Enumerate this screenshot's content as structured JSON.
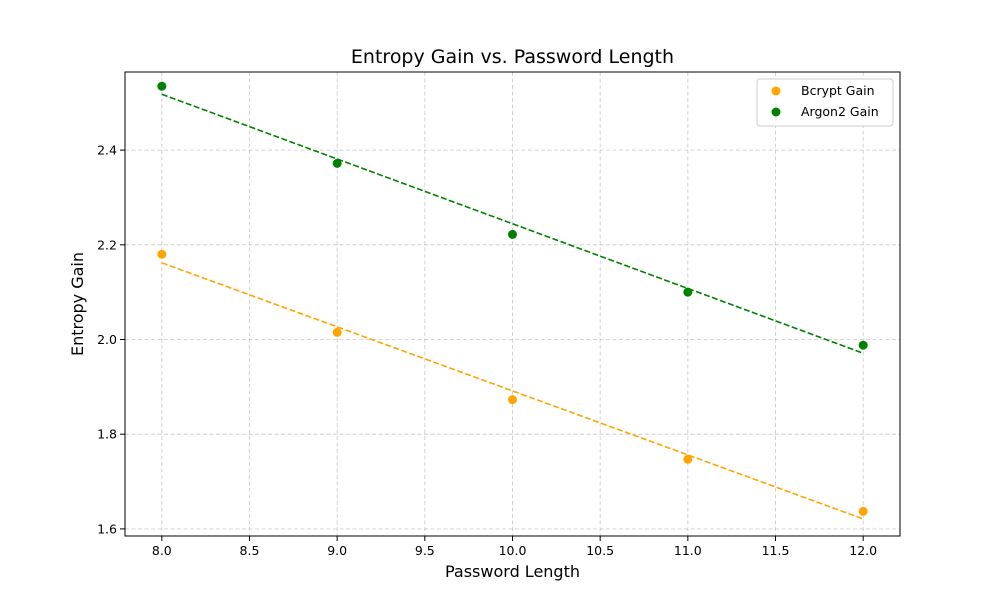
{
  "chart_data": {
    "type": "scatter",
    "title": "Entropy Gain vs. Password Length",
    "xlabel": "Password Length",
    "ylabel": "Entropy Gain",
    "xlim": [
      7.79,
      12.21
    ],
    "ylim": [
      1.585,
      2.565
    ],
    "x_ticks": [
      8.0,
      8.5,
      9.0,
      9.5,
      10.0,
      10.5,
      11.0,
      11.5,
      12.0
    ],
    "x_tick_labels": [
      "8.0",
      "8.5",
      "9.0",
      "9.5",
      "10.0",
      "10.5",
      "11.0",
      "11.5",
      "12.0"
    ],
    "y_ticks": [
      1.6,
      1.8,
      2.0,
      2.2,
      2.4
    ],
    "y_tick_labels": [
      "1.6",
      "1.8",
      "2.0",
      "2.2",
      "2.4"
    ],
    "grid": true,
    "legend_position": "top-right",
    "series": [
      {
        "name": "Bcrypt Gain",
        "color": "#ffa500",
        "x": [
          8,
          9,
          10,
          11,
          12
        ],
        "y": [
          2.18,
          2.015,
          1.873,
          1.747,
          1.637
        ],
        "trend": {
          "x": [
            8,
            12
          ],
          "y": [
            2.162,
            1.621
          ]
        }
      },
      {
        "name": "Argon2 Gain",
        "color": "#008000",
        "x": [
          8,
          9,
          10,
          11,
          12
        ],
        "y": [
          2.535,
          2.372,
          2.222,
          2.1,
          1.988
        ],
        "trend": {
          "x": [
            8,
            12
          ],
          "y": [
            2.518,
            1.971
          ]
        }
      }
    ]
  }
}
